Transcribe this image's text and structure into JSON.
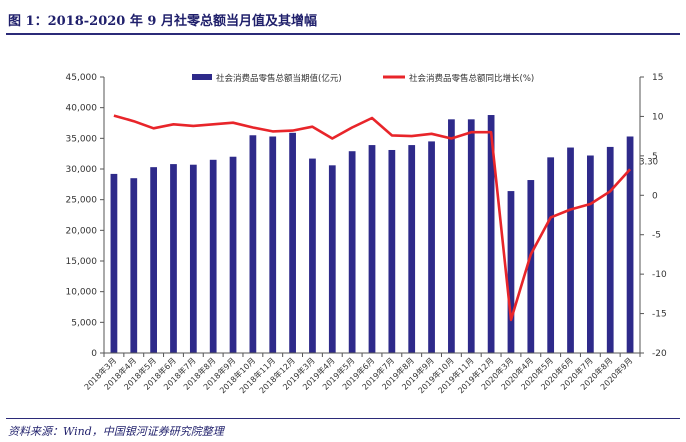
{
  "header": {
    "title": "图 1：2018-2020 年 9 月社零总额当月值及其增幅"
  },
  "footer": {
    "source": "资料来源：Wind，中国银河证券研究院整理"
  },
  "chart_data": {
    "type": "bar+line",
    "categories": [
      "2018年3月",
      "2018年4月",
      "2018年5月",
      "2018年6月",
      "2018年7月",
      "2018年8月",
      "2018年9月",
      "2018年10月",
      "2018年11月",
      "2018年12月",
      "2019年3月",
      "2019年4月",
      "2019年5月",
      "2019年6月",
      "2019年7月",
      "2019年8月",
      "2019年9月",
      "2019年10月",
      "2019年11月",
      "2019年12月",
      "2020年3月",
      "2020年4月",
      "2020年5月",
      "2020年6月",
      "2020年7月",
      "2020年8月",
      "2020年9月"
    ],
    "series": [
      {
        "name": "社会消费品零售总额当期值(亿元)",
        "type": "bar",
        "axis": "left",
        "color": "#2e2a8a",
        "values": [
          29200,
          28500,
          30300,
          30800,
          30700,
          31500,
          32000,
          35500,
          35300,
          35900,
          31700,
          30600,
          32900,
          33900,
          33100,
          33900,
          34500,
          38100,
          38100,
          38800,
          26400,
          28200,
          31900,
          33500,
          32200,
          33600,
          35300
        ]
      },
      {
        "name": "社会消费品零售总额同比增长(%)",
        "type": "line",
        "axis": "right",
        "color": "#e8252a",
        "values": [
          10.1,
          9.4,
          8.5,
          9.0,
          8.8,
          9.0,
          9.2,
          8.6,
          8.1,
          8.2,
          8.7,
          7.2,
          8.6,
          9.8,
          7.6,
          7.5,
          7.8,
          7.2,
          8.0,
          8.0,
          -15.8,
          -7.5,
          -2.8,
          -1.8,
          -1.1,
          0.5,
          3.3
        ]
      }
    ],
    "y_left": {
      "min": 0,
      "max": 45000,
      "ticks": [
        "0",
        "5,000",
        "10,000",
        "15,000",
        "20,000",
        "25,000",
        "30,000",
        "35,000",
        "40,000",
        "45,000"
      ]
    },
    "y_right": {
      "min": -20,
      "max": 15,
      "ticks": [
        "-20",
        "-15",
        "-10",
        "-5",
        "0",
        "5",
        "10",
        "15"
      ]
    },
    "annotations": [
      {
        "text": "3.30",
        "series": 1,
        "index": 26
      }
    ],
    "legend_position": "top"
  }
}
